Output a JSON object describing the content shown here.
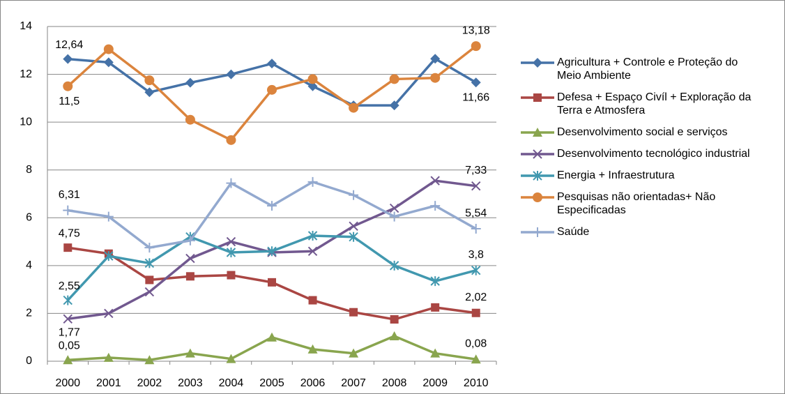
{
  "chart_data": {
    "type": "line",
    "x": [
      "2000",
      "2001",
      "2002",
      "2003",
      "2004",
      "2005",
      "2006",
      "2007",
      "2008",
      "2009",
      "2010"
    ],
    "ylim": [
      0,
      14
    ],
    "yticks": [
      0,
      2,
      4,
      6,
      8,
      10,
      12,
      14
    ],
    "grid": true,
    "legend": "right",
    "series": [
      {
        "name": "Agricultura + Controle e Proteção do Meio Ambiente",
        "color": "#4572a7",
        "marker": "diamond",
        "values": [
          12.64,
          12.5,
          11.25,
          11.65,
          12.0,
          12.45,
          11.5,
          10.7,
          10.7,
          12.65,
          11.66
        ],
        "value_labels": [
          "12,64",
          null,
          null,
          null,
          null,
          null,
          null,
          null,
          null,
          null,
          "11,66"
        ]
      },
      {
        "name": "Defesa + Espaço Civíl + Exploração da Terra e Atmosfera",
        "color": "#aa4643",
        "marker": "square",
        "values": [
          4.75,
          4.5,
          3.4,
          3.55,
          3.6,
          3.3,
          2.55,
          2.05,
          1.75,
          2.25,
          2.02
        ],
        "value_labels": [
          "4,75",
          null,
          null,
          null,
          null,
          null,
          null,
          null,
          null,
          null,
          "2,02"
        ]
      },
      {
        "name": "Desenvolvimento social e serviços",
        "color": "#89a54e",
        "marker": "triangle",
        "values": [
          0.05,
          0.15,
          0.05,
          0.33,
          0.1,
          1.0,
          0.5,
          0.33,
          1.05,
          0.33,
          0.08
        ],
        "value_labels": [
          "0,05",
          null,
          null,
          null,
          null,
          null,
          null,
          null,
          null,
          null,
          "0,08"
        ]
      },
      {
        "name": "Desenvolvimento tecnológico industrial",
        "color": "#71588f",
        "marker": "x",
        "values": [
          1.77,
          2.0,
          2.9,
          4.3,
          5.0,
          4.55,
          4.6,
          5.65,
          6.4,
          7.55,
          7.33
        ],
        "value_labels": [
          "1,77",
          null,
          null,
          null,
          null,
          null,
          null,
          null,
          null,
          null,
          "7,33"
        ]
      },
      {
        "name": "Energia + Infraestrutura",
        "color": "#4198af",
        "marker": "star",
        "values": [
          2.55,
          4.4,
          4.1,
          5.2,
          4.55,
          4.6,
          5.25,
          5.2,
          4.0,
          3.35,
          3.8
        ],
        "value_labels": [
          "2,55",
          null,
          null,
          null,
          null,
          null,
          null,
          null,
          null,
          null,
          "3,8"
        ]
      },
      {
        "name": "Pesquisas não orientadas+ Não Especificadas",
        "color": "#db843d",
        "marker": "circle",
        "values": [
          11.5,
          13.05,
          11.75,
          10.1,
          9.25,
          11.35,
          11.8,
          10.6,
          11.8,
          11.85,
          13.18
        ],
        "value_labels": [
          "11,5",
          null,
          null,
          null,
          null,
          null,
          null,
          null,
          null,
          null,
          "13,18"
        ]
      },
      {
        "name": "Saúde",
        "color": "#93a9cf",
        "marker": "plus",
        "values": [
          6.31,
          6.05,
          4.75,
          5.05,
          7.45,
          6.5,
          7.5,
          6.95,
          6.05,
          6.5,
          5.54
        ],
        "value_labels": [
          "6,31",
          null,
          null,
          null,
          null,
          null,
          null,
          null,
          null,
          null,
          "5,54"
        ]
      }
    ]
  }
}
